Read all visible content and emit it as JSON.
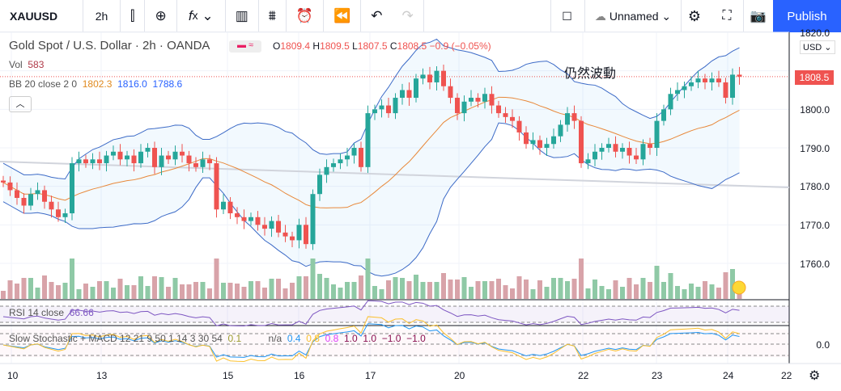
{
  "toolbar": {
    "symbol": "XAUUSD",
    "interval": "2h",
    "layout_name": "Unnamed",
    "publish": "Publish"
  },
  "legend": {
    "title": "Gold Spot / U.S. Dollar · 2h · OANDA",
    "o_label": "O",
    "o": "1809.4",
    "h_label": "H",
    "h": "1809.5",
    "l_label": "L",
    "l": "1807.5",
    "c_label": "C",
    "c": "1808.5",
    "chg": "−0.9 (−0.05%)",
    "vol_label": "Vol",
    "vol": "583",
    "bb_label": "BB 20 close 2 0",
    "bb_basis": "1802.3",
    "bb_upper": "1816.0",
    "bb_lower": "1788.6",
    "rsi_label": "RSI 14 close",
    "rsi": "66.66",
    "stoch_label": "Slow Stochastic + MACD 12 21 9 50 1 14 3 30 54",
    "stoch_vals": [
      "0.1",
      "n/a",
      "0.4",
      "0.8",
      "0.8",
      "1.0",
      "1.0",
      "−1.0",
      "−1.0"
    ]
  },
  "annotation": "仍然波動",
  "colors": {
    "up": "#26a69a",
    "down": "#ef5350",
    "bb": "#2962ff",
    "basis": "#ff9800",
    "accent": "#2962ff"
  },
  "chart_data": {
    "type": "candlestick",
    "title": "Gold Spot / U.S. Dollar",
    "currency": "USD",
    "current_price": "1808.5",
    "y_ticks": [
      "1820.0",
      "1800.0",
      "1790.0",
      "1780.0",
      "1770.0",
      "1760.0"
    ],
    "ylim": [
      1760,
      1820
    ],
    "x_ticks": [
      "10",
      "13",
      "15",
      "16",
      "17",
      "20",
      "22",
      "23",
      "24",
      "22"
    ],
    "stoch_tick": "0.0",
    "closes": [
      1781,
      1779,
      1777,
      1775,
      1778,
      1779,
      1776,
      1774,
      1772,
      1773,
      1786,
      1787,
      1786,
      1787,
      1786,
      1788,
      1789,
      1787,
      1788,
      1786,
      1789,
      1790,
      1785,
      1788,
      1787,
      1789,
      1788,
      1786,
      1785,
      1787,
      1786,
      1774,
      1776,
      1773,
      1772,
      1771,
      1772,
      1770,
      1769,
      1771,
      1768,
      1767,
      1766,
      1770,
      1765,
      1778,
      1783,
      1785,
      1786,
      1787,
      1788,
      1790,
      1785,
      1799,
      1800,
      1801,
      1799,
      1803,
      1805,
      1803,
      1808,
      1809,
      1807,
      1810,
      1806,
      1803,
      1799,
      1802,
      1803,
      1802,
      1804,
      1801,
      1799,
      1798,
      1797,
      1794,
      1791,
      1792,
      1790,
      1791,
      1793,
      1796,
      1799,
      1797,
      1786,
      1787,
      1789,
      1790,
      1791,
      1789,
      1790,
      1788,
      1787,
      1791,
      1790,
      1797,
      1800,
      1804,
      1805,
      1806,
      1807,
      1808,
      1807,
      1808,
      1807,
      1803,
      1809,
      1808.5
    ]
  }
}
